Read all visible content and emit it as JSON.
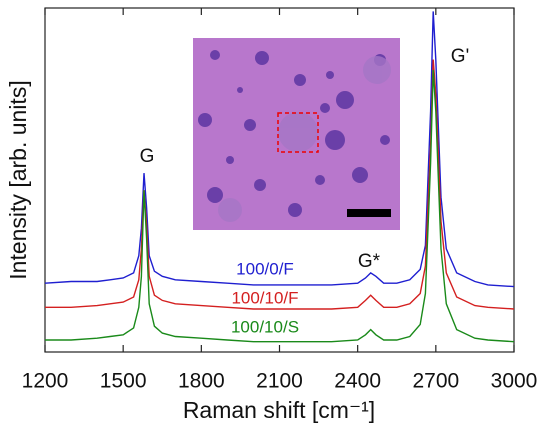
{
  "chart_data": {
    "type": "line",
    "xlabel": "Raman shift [cm⁻¹]",
    "ylabel": "Intensity [arb. units]",
    "annotations": [
      "G",
      "G*",
      "G'"
    ],
    "x": [
      1200,
      1300,
      1400,
      1450,
      1500,
      1540,
      1560,
      1570,
      1580,
      1590,
      1600,
      1620,
      1650,
      1700,
      1800,
      1900,
      2000,
      2100,
      2200,
      2300,
      2400,
      2430,
      2450,
      2470,
      2500,
      2550,
      2600,
      2640,
      2660,
      2680,
      2690,
      2700,
      2720,
      2740,
      2780,
      2850,
      2900,
      3000
    ],
    "series": [
      {
        "name": "100/0/F",
        "color": "#1f1fd0",
        "values": [
          20,
          20.5,
          20.5,
          21,
          21.5,
          23,
          28,
          36,
          52,
          42,
          28,
          23.5,
          22,
          21,
          20.5,
          20,
          19.5,
          19.5,
          19.5,
          19.5,
          20,
          21.5,
          23,
          22,
          20,
          20,
          21,
          24,
          31,
          70,
          99,
          85,
          45,
          30,
          23,
          20.5,
          19.5,
          19
        ]
      },
      {
        "name": "100/10/F",
        "color": "#d42020",
        "values": [
          13,
          13,
          13.5,
          14,
          14.5,
          16,
          21,
          30,
          47,
          37,
          22,
          16.5,
          15,
          14,
          13.5,
          13,
          12.5,
          12.5,
          12.5,
          12.5,
          13,
          15,
          16.5,
          15,
          13,
          13,
          14,
          17,
          25,
          60,
          85,
          75,
          38,
          23,
          16,
          13.5,
          13,
          12.5
        ]
      },
      {
        "name": "100/10/S",
        "color": "#1a8a1a",
        "values": [
          3.5,
          3.5,
          4,
          4.5,
          5,
          7,
          13,
          22,
          47,
          33,
          14,
          7.5,
          5.5,
          4.5,
          4,
          3.5,
          3,
          3,
          3,
          3,
          3.5,
          5,
          6.5,
          5,
          3.5,
          3.5,
          4.5,
          8,
          17,
          55,
          82,
          70,
          30,
          14,
          6.5,
          4,
          3.5,
          3
        ]
      }
    ],
    "xlim": [
      1200,
      3000
    ],
    "xticks": [
      1200,
      1500,
      1800,
      2100,
      2400,
      2700,
      3000
    ],
    "ylim": [
      0,
      100
    ]
  }
}
